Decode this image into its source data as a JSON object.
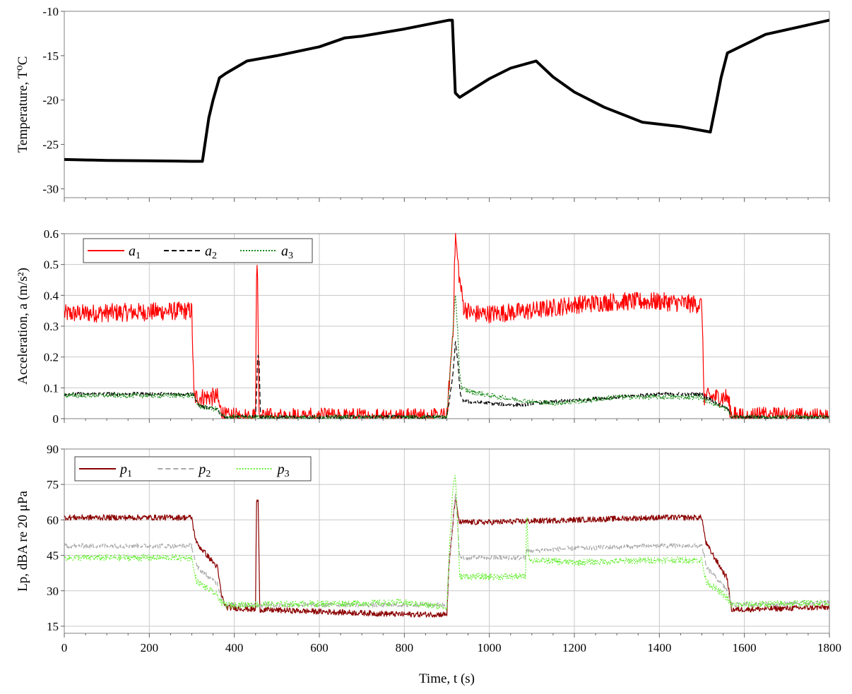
{
  "chart_data": [
    {
      "type": "line",
      "title": "",
      "ylabel": "Temperature, T⁰C",
      "xlabel": "",
      "ylim": [
        -31,
        -10
      ],
      "xlim": [
        0,
        1800
      ],
      "yticks": [
        -30,
        -25,
        -20,
        -15,
        -10
      ],
      "ytick_labels": [
        "-30",
        "-25",
        "-20",
        "-15",
        "-10"
      ],
      "xticks": [
        0,
        200,
        400,
        600,
        800,
        1000,
        1200,
        1400,
        1600,
        1800
      ],
      "grid": false,
      "legend": null,
      "series": [
        {
          "color": "#000000",
          "x": [
            0,
            100,
            200,
            300,
            325,
            340,
            350,
            365,
            380,
            430,
            500,
            600,
            660,
            700,
            800,
            905,
            913,
            920,
            930,
            1000,
            1050,
            1110,
            1150,
            1200,
            1270,
            1360,
            1450,
            1520,
            1535,
            1545,
            1560,
            1650,
            1800
          ],
          "y": [
            -26.7,
            -26.8,
            -26.85,
            -26.9,
            -26.9,
            -22.0,
            -20.0,
            -17.5,
            -17.0,
            -15.6,
            -15.0,
            -14.0,
            -13.0,
            -12.8,
            -12.0,
            -11.0,
            -11.0,
            -19.2,
            -19.7,
            -17.6,
            -16.4,
            -15.6,
            -17.4,
            -19.1,
            -20.8,
            -22.5,
            -23.0,
            -23.6,
            -20.0,
            -17.5,
            -14.7,
            -12.6,
            -11.0
          ]
        }
      ]
    },
    {
      "type": "line",
      "title": "",
      "ylabel": "Acceleration, a (m/s²)",
      "xlabel": "",
      "ylim": [
        0,
        0.6
      ],
      "xlim": [
        0,
        1800
      ],
      "yticks": [
        0,
        0.1,
        0.2,
        0.3,
        0.4,
        0.5,
        0.6
      ],
      "ytick_labels": [
        "0",
        "0.1",
        "0.2",
        "0.3",
        "0.4",
        "0.5",
        "0.6"
      ],
      "xticks": [
        0,
        200,
        400,
        600,
        800,
        1000,
        1200,
        1400,
        1600,
        1800
      ],
      "grid": true,
      "legend": "top-left",
      "series": [
        {
          "name": "a1",
          "color": "#ff0000",
          "dash": "none",
          "noise": 0.03,
          "x": [
            0,
            300,
            305,
            312,
            360,
            365,
            370,
            380,
            400,
            450,
            452,
            455,
            458,
            462,
            500,
            800,
            900,
            905,
            915,
            920,
            923,
            930,
            940,
            960,
            1000,
            1100,
            1200,
            1300,
            1400,
            1500,
            1505,
            1510,
            1560,
            1565,
            1570,
            1800
          ],
          "y": [
            0.34,
            0.35,
            0.07,
            0.07,
            0.07,
            0.04,
            0.02,
            0.005,
            0.005,
            0.005,
            0.47,
            0.47,
            0.01,
            0.005,
            0.005,
            0.005,
            0.005,
            0.1,
            0.3,
            0.6,
            0.55,
            0.45,
            0.36,
            0.34,
            0.34,
            0.35,
            0.37,
            0.38,
            0.38,
            0.37,
            0.07,
            0.07,
            0.07,
            0.04,
            0.01,
            0.005
          ]
        },
        {
          "name": "a2",
          "color": "#000000",
          "dash": "7,4",
          "noise": 0.006,
          "x": [
            0,
            300,
            305,
            312,
            320,
            360,
            370,
            380,
            450,
            455,
            458,
            462,
            470,
            800,
            900,
            905,
            915,
            920,
            925,
            930,
            935,
            950,
            1000,
            1050,
            1080,
            1100,
            1150,
            1200,
            1300,
            1400,
            1500,
            1505,
            1510,
            1560,
            1565,
            1570,
            1800
          ],
          "y": [
            0.08,
            0.08,
            0.08,
            0.05,
            0.04,
            0.03,
            0.01,
            0.005,
            0.005,
            0.2,
            0.2,
            0.005,
            0.005,
            0.005,
            0.005,
            0.05,
            0.15,
            0.25,
            0.2,
            0.1,
            0.06,
            0.055,
            0.05,
            0.045,
            0.045,
            0.05,
            0.055,
            0.06,
            0.07,
            0.08,
            0.08,
            0.07,
            0.07,
            0.03,
            0.02,
            0.005,
            0.005
          ]
        },
        {
          "name": "a3",
          "color": "#1a8a1a",
          "dash": "2,2",
          "noise": 0.008,
          "x": [
            0,
            300,
            305,
            312,
            320,
            360,
            370,
            380,
            800,
            900,
            905,
            915,
            920,
            925,
            930,
            935,
            950,
            1000,
            1100,
            1150,
            1200,
            1300,
            1400,
            1500,
            1505,
            1510,
            1560,
            1565,
            1570,
            1800
          ],
          "y": [
            0.075,
            0.075,
            0.075,
            0.05,
            0.04,
            0.03,
            0.01,
            0.005,
            0.005,
            0.005,
            0.1,
            0.3,
            0.4,
            0.3,
            0.15,
            0.1,
            0.09,
            0.075,
            0.055,
            0.05,
            0.055,
            0.07,
            0.07,
            0.07,
            0.06,
            0.06,
            0.03,
            0.02,
            0.005,
            0.005
          ]
        }
      ]
    },
    {
      "type": "line",
      "title": "",
      "ylabel": "Lp, dBA  re 20 μPa",
      "xlabel": "Time, t (s)",
      "ylim": [
        12,
        90
      ],
      "xlim": [
        0,
        1800
      ],
      "yticks": [
        15,
        30,
        45,
        60,
        75,
        90
      ],
      "ytick_labels": [
        "15",
        "30",
        "45",
        "60",
        "75",
        "90"
      ],
      "xticks": [
        0,
        200,
        400,
        600,
        800,
        1000,
        1200,
        1400,
        1600,
        1800
      ],
      "xtick_labels": [
        "0",
        "200",
        "400",
        "600",
        "800",
        "1000",
        "1200",
        "1400",
        "1600",
        "1800"
      ],
      "grid": true,
      "legend": "top-left",
      "series": [
        {
          "name": "p1",
          "color": "#8b0000",
          "dash": "none",
          "noise": 1.2,
          "x": [
            0,
            300,
            305,
            312,
            360,
            370,
            380,
            450,
            452,
            456,
            460,
            800,
            900,
            905,
            915,
            920,
            925,
            930,
            1000,
            1200,
            1400,
            1500,
            1505,
            1510,
            1560,
            1565,
            1570,
            1800
          ],
          "y": [
            61,
            61,
            55,
            50,
            40,
            28,
            23,
            22,
            68,
            68,
            22,
            20,
            20,
            40,
            60,
            70,
            63,
            59,
            59,
            60,
            61,
            61,
            55,
            50,
            35,
            28,
            22,
            23
          ]
        },
        {
          "name": "p2",
          "color": "#a8a8a8",
          "dash": "7,4",
          "noise": 1.0,
          "x": [
            0,
            300,
            305,
            312,
            360,
            370,
            380,
            800,
            900,
            905,
            915,
            920,
            925,
            930,
            1085,
            1088,
            1100,
            1200,
            1400,
            1500,
            1505,
            1510,
            1560,
            1565,
            1570,
            1800
          ],
          "y": [
            49,
            49,
            45,
            40,
            33,
            27,
            24,
            24,
            24,
            40,
            60,
            72,
            60,
            44,
            44,
            47,
            47,
            48,
            49,
            49,
            45,
            40,
            30,
            27,
            24,
            25
          ]
        },
        {
          "name": "p3",
          "color": "#66ee33",
          "dash": "2,2",
          "noise": 1.4,
          "x": [
            0,
            300,
            305,
            312,
            360,
            370,
            380,
            800,
            900,
            905,
            915,
            920,
            925,
            930,
            933,
            1085,
            1088,
            1092,
            1100,
            1200,
            1400,
            1500,
            1505,
            1510,
            1560,
            1565,
            1570,
            1800
          ],
          "y": [
            44,
            44,
            38,
            34,
            28,
            25,
            24,
            25,
            23,
            45,
            75,
            79,
            60,
            36,
            36,
            36,
            64,
            44,
            43,
            42,
            43,
            43,
            38,
            34,
            27,
            25,
            24,
            25
          ]
        }
      ]
    }
  ]
}
